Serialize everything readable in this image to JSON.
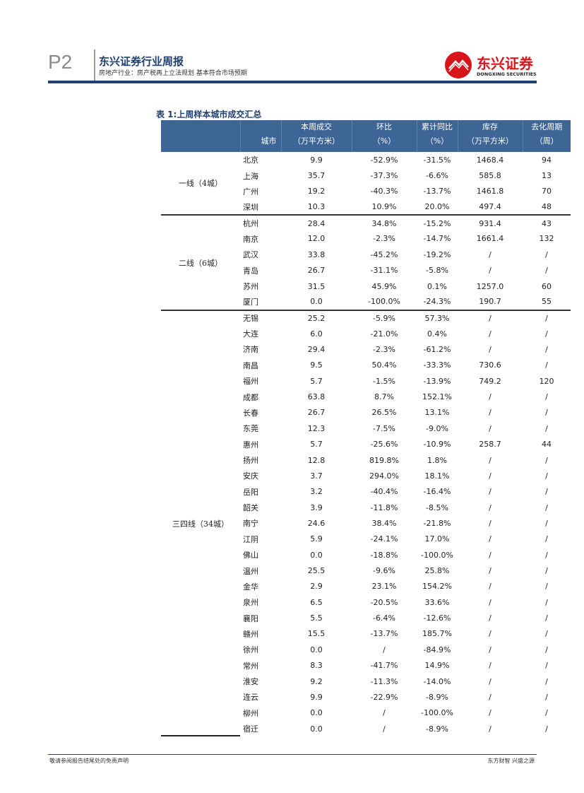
{
  "header": {
    "page": "P2",
    "title": "东兴证券行业周报",
    "subtitle": "房地产行业：房产税再上立法规划 基本符合市场预期",
    "logo_cn": "东兴证券",
    "logo_en": "DONGXING SECURITIES"
  },
  "table": {
    "title": "表 1:上周样本城市成交汇总",
    "columns": [
      {
        "l1": "",
        "l2": "城市"
      },
      {
        "l1": "本周成交",
        "l2": "（万平方米）"
      },
      {
        "l1": "环比",
        "l2": "（%）"
      },
      {
        "l1": "累计同比",
        "l2": "（%）"
      },
      {
        "l1": "库存",
        "l2": "（万平方米）"
      },
      {
        "l1": "去化周期",
        "l2": "（周）"
      }
    ],
    "groups": [
      {
        "label": "一线（4城）",
        "rows": [
          [
            "北京",
            "9.9",
            "-52.9%",
            "-31.5%",
            "1468.4",
            "94"
          ],
          [
            "上海",
            "35.7",
            "-37.3%",
            "-6.6%",
            "585.8",
            "13"
          ],
          [
            "广州",
            "19.2",
            "-40.3%",
            "-13.7%",
            "1461.8",
            "70"
          ],
          [
            "深圳",
            "10.3",
            "10.9%",
            "20.0%",
            "497.4",
            "48"
          ]
        ]
      },
      {
        "label": "二线（6城）",
        "rows": [
          [
            "杭州",
            "28.4",
            "34.8%",
            "-15.2%",
            "931.4",
            "43"
          ],
          [
            "南京",
            "12.0",
            "-2.3%",
            "-14.7%",
            "1661.4",
            "132"
          ],
          [
            "武汉",
            "33.8",
            "-45.2%",
            "-19.2%",
            "/",
            "/"
          ],
          [
            "青岛",
            "26.7",
            "-31.1%",
            "-5.8%",
            "/",
            "/"
          ],
          [
            "苏州",
            "31.5",
            "45.9%",
            "0.1%",
            "1257.0",
            "60"
          ],
          [
            "厦门",
            "0.0",
            "-100.0%",
            "-24.3%",
            "190.7",
            "55"
          ]
        ]
      },
      {
        "label": "三四线（34城）",
        "rows": [
          [
            "无锡",
            "25.2",
            "-5.9%",
            "57.3%",
            "/",
            "/"
          ],
          [
            "大连",
            "6.0",
            "-21.0%",
            "0.4%",
            "/",
            "/"
          ],
          [
            "济南",
            "29.4",
            "-2.3%",
            "-61.2%",
            "/",
            "/"
          ],
          [
            "南昌",
            "9.5",
            "50.4%",
            "-33.3%",
            "730.6",
            "/"
          ],
          [
            "福州",
            "5.7",
            "-1.5%",
            "-13.9%",
            "749.2",
            "120"
          ],
          [
            "成都",
            "63.8",
            "8.7%",
            "152.1%",
            "/",
            "/"
          ],
          [
            "长春",
            "26.7",
            "26.5%",
            "13.1%",
            "/",
            "/"
          ],
          [
            "东莞",
            "12.3",
            "-7.5%",
            "-9.0%",
            "/",
            "/"
          ],
          [
            "惠州",
            "5.7",
            "-25.6%",
            "-10.9%",
            "258.7",
            "44"
          ],
          [
            "扬州",
            "12.8",
            "819.8%",
            "1.8%",
            "/",
            "/"
          ],
          [
            "安庆",
            "3.7",
            "294.0%",
            "18.1%",
            "/",
            "/"
          ],
          [
            "岳阳",
            "3.2",
            "-40.4%",
            "-16.4%",
            "/",
            "/"
          ],
          [
            "韶关",
            "3.9",
            "-11.8%",
            "-8.5%",
            "/",
            "/"
          ],
          [
            "南宁",
            "24.6",
            "38.4%",
            "-21.8%",
            "/",
            "/"
          ],
          [
            "江阴",
            "5.9",
            "-24.1%",
            "17.0%",
            "/",
            "/"
          ],
          [
            "佛山",
            "0.0",
            "-18.8%",
            "-100.0%",
            "/",
            "/"
          ],
          [
            "温州",
            "25.5",
            "-9.6%",
            "25.8%",
            "/",
            "/"
          ],
          [
            "金华",
            "2.9",
            "23.1%",
            "154.2%",
            "/",
            "/"
          ],
          [
            "泉州",
            "6.5",
            "-20.5%",
            "33.6%",
            "/",
            "/"
          ],
          [
            "襄阳",
            "5.5",
            "-6.4%",
            "-12.6%",
            "/",
            "/"
          ],
          [
            "赣州",
            "15.5",
            "-13.7%",
            "185.7%",
            "/",
            "/"
          ],
          [
            "徐州",
            "0.0",
            "/",
            "-84.9%",
            "/",
            "/"
          ],
          [
            "常州",
            "8.3",
            "-41.7%",
            "14.9%",
            "/",
            "/"
          ],
          [
            "淮安",
            "9.2",
            "-11.3%",
            "-14.0%",
            "/",
            "/"
          ],
          [
            "连云",
            "9.9",
            "-22.9%",
            "-8.9%",
            "/",
            "/"
          ],
          [
            "柳州",
            "0.0",
            "/",
            "-100.0%",
            "/",
            "/"
          ],
          [
            "宿迁",
            "0.0",
            "/",
            "-8.9%",
            "/",
            "/"
          ]
        ]
      }
    ]
  },
  "footer": {
    "left": "敬请参阅报告结尾处的免责声明",
    "right": "东方财智 兴盛之源"
  },
  "colors": {
    "brand_navy": "#1f3f6e",
    "header_bg": "#3d6595",
    "logo_red": "#d7141a"
  }
}
